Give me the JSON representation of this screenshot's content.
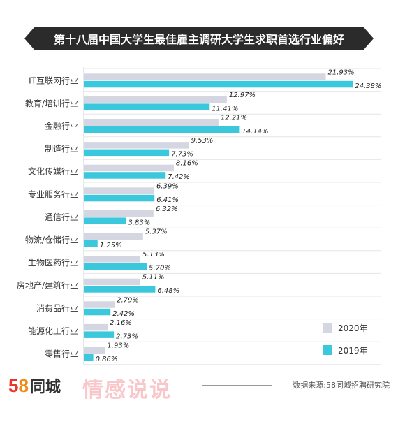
{
  "title": "第十八届中国大学生最佳雇主调研大学生求职首选行业偏好",
  "source": "数据来源:58同城招聘研究院",
  "logo": {
    "num5": "5",
    "num8": "8",
    "text": "同城"
  },
  "watermark": "情感说说",
  "colors": {
    "s2020": "#d4d6e2",
    "s2019": "#3cc8dc"
  },
  "chart_data": {
    "type": "bar",
    "orientation": "horizontal",
    "categories": [
      "IT互联网行业",
      "教育/培训行业",
      "金融行业",
      "制造行业",
      "文化传媒行业",
      "专业服务行业",
      "通信行业",
      "物流/仓储行业",
      "生物医药行业",
      "房地产/建筑行业",
      "消费品行业",
      "能源化工行业",
      "零售行业"
    ],
    "series": [
      {
        "name": "2020年",
        "values": [
          21.93,
          12.97,
          12.21,
          9.53,
          8.16,
          6.39,
          6.32,
          5.37,
          5.13,
          5.11,
          2.79,
          2.16,
          1.93
        ],
        "labels": [
          "21.93%",
          "12.97%",
          "12.21%",
          "9.53%",
          "8.16%",
          "6.39%",
          "6.32%",
          "5.37%",
          "5.13%",
          "5.11%",
          "2.79%",
          "2.16%",
          "1.93%"
        ]
      },
      {
        "name": "2019年",
        "values": [
          24.38,
          11.41,
          14.14,
          7.73,
          7.42,
          6.41,
          3.83,
          1.25,
          5.7,
          6.48,
          2.42,
          2.73,
          0.86
        ],
        "labels": [
          "24.38%",
          "11.41%",
          "14.14%",
          "7.73%",
          "7.42%",
          "6.41%",
          "3.83%",
          "1.25%",
          "5.70%",
          "6.48%",
          "2.42%",
          "2.73%",
          "0.86%"
        ]
      }
    ],
    "xlim": [
      0,
      25
    ],
    "grid": true,
    "legend_position": "bottom-right"
  }
}
